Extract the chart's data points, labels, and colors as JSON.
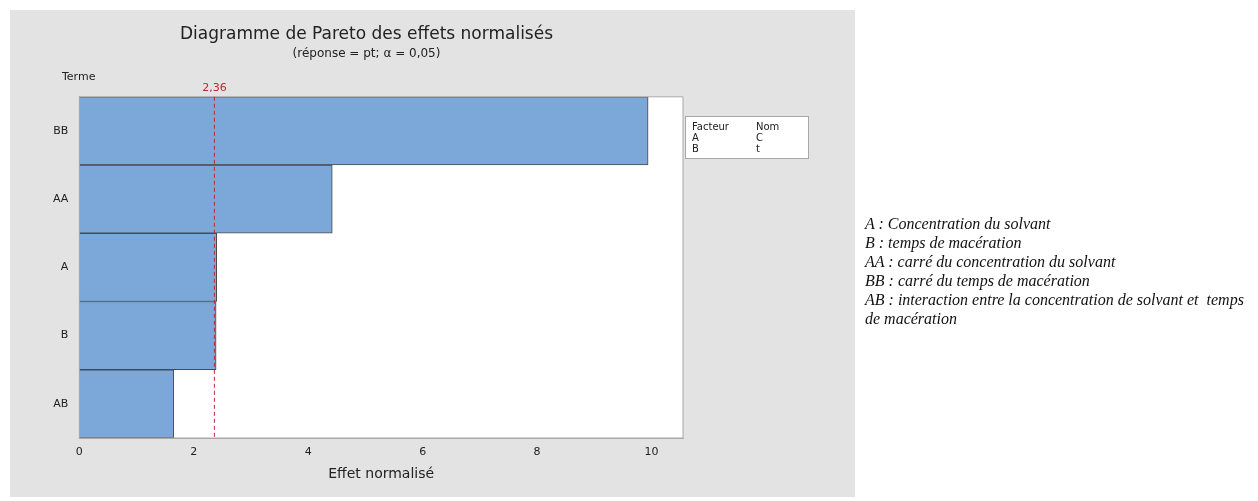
{
  "chart_data": {
    "type": "bar",
    "orientation": "horizontal",
    "title": "Diagramme de Pareto des effets normalisés",
    "subtitle": "(réponse = pt; α = 0,05)",
    "xlabel": "Effet normalisé",
    "ylabel": "Terme",
    "categories": [
      "BB",
      "AA",
      "A",
      "B",
      "AB"
    ],
    "values": [
      9.94,
      4.42,
      2.4,
      2.39,
      1.65
    ],
    "color": "#7ba7d9",
    "xlim": [
      0,
      10.55
    ],
    "xticks": [
      0,
      2,
      4,
      6,
      8,
      10
    ],
    "ref_lines": [
      {
        "axis": "x",
        "value": 2.36,
        "label": "2,36",
        "color": "#c0282d",
        "line_style": "dashed"
      }
    ],
    "grid": false,
    "legend": false,
    "annotations": [
      "Facteur\tNom",
      "A\tC",
      "B\tt",
      "A : Concentration du solvant",
      "B : temps de macération",
      "AA : carré du concentration du solvant",
      "BB : carré du temps de macération",
      "AB : interaction entre la concentration de solvant et  temps de macération"
    ]
  }
}
